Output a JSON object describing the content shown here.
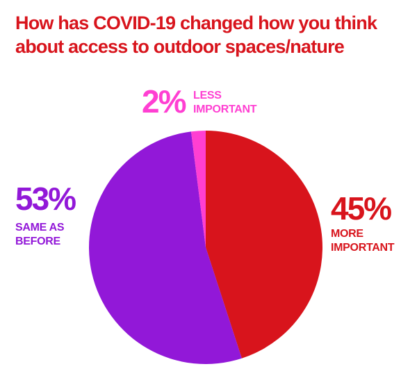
{
  "chart_data": {
    "type": "pie",
    "title": "How has COVID-19 changed how you think about access to outdoor spaces/nature",
    "categories": [
      "MORE IMPORTANT",
      "SAME AS BEFORE",
      "LESS IMPORTANT"
    ],
    "values": [
      45,
      53,
      2
    ],
    "value_labels": [
      "45%",
      "53%",
      "2%"
    ],
    "colors": [
      "#d8141c",
      "#9218d8",
      "#ff3fd2"
    ],
    "title_color": "#d8141c"
  }
}
